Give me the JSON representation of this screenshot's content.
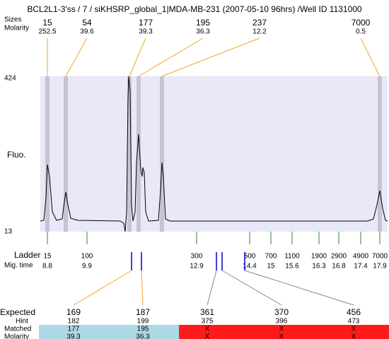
{
  "title": "BCL2L1-3'ss / 7 / siKHSRP_global_1|MDA-MB-231 (2007-05-10 96hrs) /Well ID 1131000",
  "header": {
    "sizes_label": "Sizes",
    "molarity_label": "Molarity"
  },
  "peaks": [
    {
      "size": "15",
      "molarity": "252.5"
    },
    {
      "size": "54",
      "molarity": "39.6"
    },
    {
      "size": "177",
      "molarity": "39.3"
    },
    {
      "size": "195",
      "molarity": "36.3"
    },
    {
      "size": "237",
      "molarity": "12.2"
    },
    {
      "size": "7000",
      "molarity": "0.5"
    }
  ],
  "axis": {
    "top": "424",
    "bottom": "13",
    "label": "Fluo."
  },
  "ladder": {
    "label": "Ladder",
    "mig_label": "Mig. time",
    "sizes": [
      "15",
      "100",
      "300",
      "500",
      "700",
      "1100",
      "1900",
      "2900",
      "4900",
      "7000"
    ],
    "mig_times": [
      "8.8",
      "9.9",
      "12.9",
      "14.4",
      "15",
      "15.6",
      "16.3",
      "16.8",
      "17.4",
      "17.9"
    ]
  },
  "fragments": {
    "expected_label": "Expected",
    "hint_label": "Hint",
    "matched_label": "Matched",
    "molarity_label": "Molarity",
    "columns": [
      {
        "expected": "169",
        "hint": "182",
        "matched": "177",
        "molarity": "39.3"
      },
      {
        "expected": "187",
        "hint": "199",
        "matched": "195",
        "molarity": "36.3"
      },
      {
        "expected": "361",
        "hint": "375",
        "matched": "X",
        "molarity": "X"
      },
      {
        "expected": "370",
        "hint": "396",
        "matched": "X",
        "molarity": "X"
      },
      {
        "expected": "456",
        "hint": "473",
        "matched": "X",
        "molarity": "X"
      }
    ]
  }
}
